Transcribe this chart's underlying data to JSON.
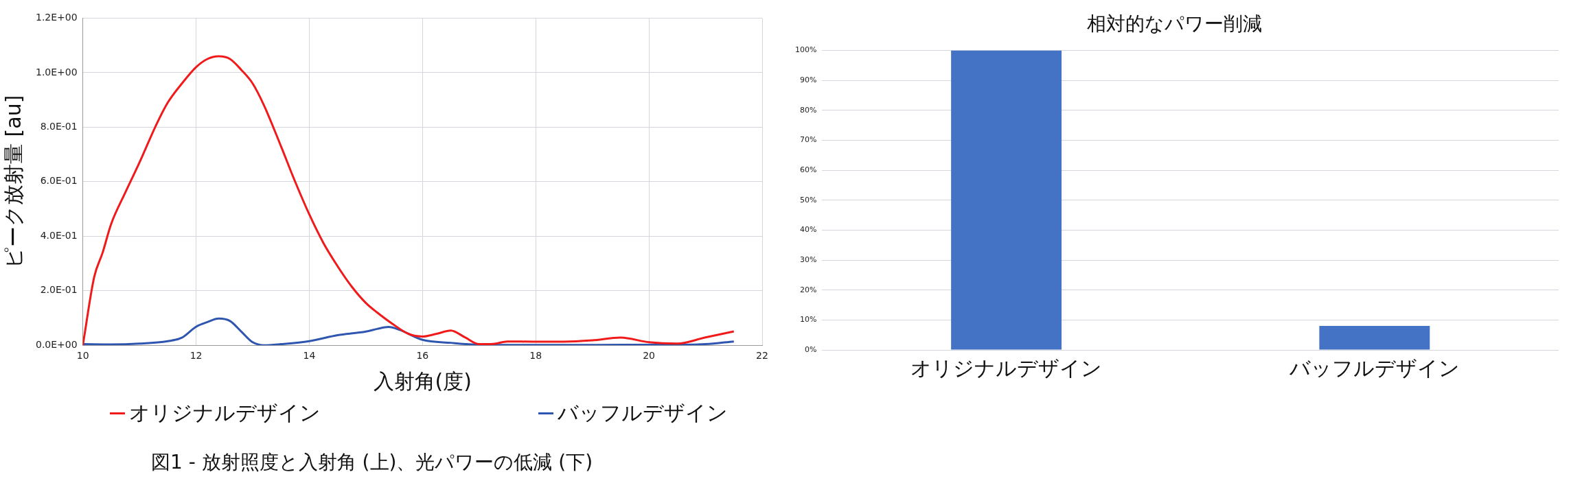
{
  "chart_data": [
    {
      "type": "line",
      "xlabel": "入射角(度)",
      "ylabel": "ピーク放射量 [au]",
      "xlim": [
        10,
        22
      ],
      "xticks": [
        10,
        12,
        14,
        16,
        18,
        20,
        22
      ],
      "ylim": [
        0,
        1.2
      ],
      "yticks": [
        {
          "value": 0,
          "label": "0.0E+00"
        },
        {
          "value": 0.2,
          "label": "2.0E-01"
        },
        {
          "value": 0.4,
          "label": "4.0E-01"
        },
        {
          "value": 0.6,
          "label": "6.0E-01"
        },
        {
          "value": 0.8,
          "label": "8.0E-01"
        },
        {
          "value": 1.0,
          "label": "1.0E+00"
        },
        {
          "value": 1.2,
          "label": "1.2E+00"
        }
      ],
      "grid": true,
      "legend": "bottom",
      "line_style": "solid",
      "series": [
        {
          "name": "オリジナルデザイン",
          "color": "#f01a1a",
          "x": [
            10,
            10.2,
            10.35,
            10.5,
            10.75,
            11,
            11.3,
            11.5,
            11.75,
            12,
            12.2,
            12.4,
            12.6,
            12.8,
            13,
            13.2,
            13.5,
            13.75,
            14,
            14.25,
            14.5,
            14.75,
            15,
            15.2,
            15.5,
            15.75,
            16,
            16.25,
            16.5,
            16.75,
            17,
            17.25,
            17.5,
            18,
            18.5,
            19,
            19.5,
            20,
            20.5,
            21,
            21.5
          ],
          "values": [
            0,
            0.25,
            0.34,
            0.445,
            0.56,
            0.67,
            0.81,
            0.89,
            0.96,
            1.02,
            1.05,
            1.06,
            1.05,
            1.01,
            0.96,
            0.88,
            0.73,
            0.6,
            0.48,
            0.375,
            0.29,
            0.215,
            0.155,
            0.12,
            0.074,
            0.042,
            0.032,
            0.042,
            0.054,
            0.029,
            0.004,
            0.005,
            0.014,
            0.013,
            0.013,
            0.018,
            0.028,
            0.011,
            0.006,
            0.029,
            0.051
          ]
        },
        {
          "name": "バッフルデザイン",
          "color": "#2e56b0",
          "x": [
            10,
            10.5,
            11,
            11.5,
            11.75,
            12,
            12.2,
            12.4,
            12.6,
            12.8,
            13,
            13.2,
            13.5,
            14,
            14.5,
            15,
            15.2,
            15.4,
            15.6,
            16,
            16.5,
            17,
            18,
            19,
            20,
            20.5,
            21,
            21.5
          ],
          "values": [
            0.004,
            0.003,
            0.006,
            0.015,
            0.028,
            0.068,
            0.085,
            0.098,
            0.089,
            0.05,
            0.011,
            0,
            0.004,
            0.015,
            0.037,
            0.05,
            0.06,
            0.067,
            0.056,
            0.02,
            0.009,
            0.002,
            0.001,
            0.001,
            0.002,
            0.002,
            0.004,
            0.014
          ]
        }
      ],
      "annotations": [
        "図1 - 放射照度と入射角 (上)、光パワーの低減 (下)"
      ]
    },
    {
      "type": "bar",
      "title": "相対的なパワー削減",
      "categories": [
        "オリジナルデザイン",
        "バッフルデザイン"
      ],
      "values": [
        100,
        8
      ],
      "color": "#4472c4",
      "ylim": [
        0,
        100
      ],
      "yticks": [
        {
          "value": 0,
          "label": "0%"
        },
        {
          "value": 10,
          "label": "10%"
        },
        {
          "value": 20,
          "label": "20%"
        },
        {
          "value": 30,
          "label": "30%"
        },
        {
          "value": 40,
          "label": "40%"
        },
        {
          "value": 50,
          "label": "50%"
        },
        {
          "value": 60,
          "label": "60%"
        },
        {
          "value": 70,
          "label": "70%"
        },
        {
          "value": 80,
          "label": "80%"
        },
        {
          "value": 90,
          "label": "90%"
        },
        {
          "value": 100,
          "label": "100%"
        }
      ],
      "grid": "y"
    }
  ]
}
